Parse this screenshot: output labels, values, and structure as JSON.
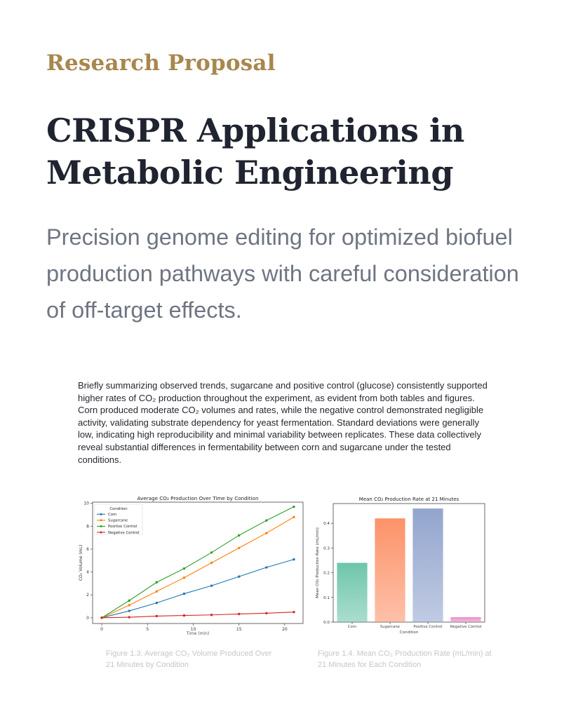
{
  "header": {
    "eyebrow": "Research Proposal",
    "title": "CRISPR Applications in Metabolic Engineering",
    "subtitle": "Precision genome editing for optimized biofuel production pathways with careful consideration of off-target effects."
  },
  "body": {
    "paragraph": "Briefly summarizing observed trends, sugarcane and positive control (glucose) consistently supported higher rates of CO₂ production throughout the experiment, as evident from both tables and figures. Corn produced moderate CO₂ volumes and rates, while the negative control demonstrated negligible activity, validating substrate dependency for yeast fermentation. Standard deviations were generally low, indicating high reproducibility and minimal variability between replicates. These data collectively reveal substantial differences in fermentability between corn and sugarcane under the tested conditions."
  },
  "captions": {
    "fig1": "Figure 1.3. Average CO₂ Volume Produced Over 21 Minutes by Condition",
    "fig2": "Figure 1.4. Mean CO₂ Production Rate (mL/min) at 21 Minutes for Each Condition"
  },
  "chart_data": [
    {
      "type": "line",
      "title": "Average CO₂ Production Over Time by Condition",
      "xlabel": "Time (min)",
      "ylabel": "CO₂ Volume (mL)",
      "xlim": [
        -1,
        22
      ],
      "ylim": [
        -0.5,
        10.1
      ],
      "xticks": [
        0,
        5,
        10,
        15,
        20
      ],
      "yticks": [
        0,
        2,
        4,
        6,
        8,
        10
      ],
      "grid": false,
      "legend": {
        "title": "Condition",
        "placement": "top-left"
      },
      "x": [
        0,
        3,
        6,
        9,
        12,
        15,
        18,
        21
      ],
      "series": [
        {
          "name": "Corn",
          "color": "#1f77b4",
          "values": [
            0,
            0.6,
            1.3,
            2.1,
            2.8,
            3.6,
            4.4,
            5.1
          ]
        },
        {
          "name": "Sugarcane",
          "color": "#ff7f0e",
          "values": [
            0,
            1.1,
            2.3,
            3.5,
            4.8,
            6.1,
            7.4,
            8.8
          ]
        },
        {
          "name": "Positive Control",
          "color": "#2ca02c",
          "values": [
            0,
            1.5,
            3.1,
            4.3,
            5.7,
            7.2,
            8.5,
            9.7
          ]
        },
        {
          "name": "Negative Control",
          "color": "#d62728",
          "values": [
            0,
            0.05,
            0.15,
            0.2,
            0.25,
            0.33,
            0.4,
            0.5
          ]
        }
      ]
    },
    {
      "type": "bar",
      "title": "Mean CO₂ Production Rate at 21 Minutes",
      "xlabel": "Condition",
      "ylabel": "Mean CO₂ Production Rate (mL/min)",
      "ylim": [
        0,
        0.48
      ],
      "yticks": [
        0.0,
        0.1,
        0.2,
        0.3,
        0.4
      ],
      "grid": false,
      "categories": [
        "Corn",
        "Sugarcane",
        "Positive Control",
        "Negative Control"
      ],
      "values": [
        0.24,
        0.42,
        0.46,
        0.02
      ],
      "colors": [
        "#66c2a5",
        "#fc8d62",
        "#8da0cb",
        "#e78ac3"
      ]
    }
  ]
}
